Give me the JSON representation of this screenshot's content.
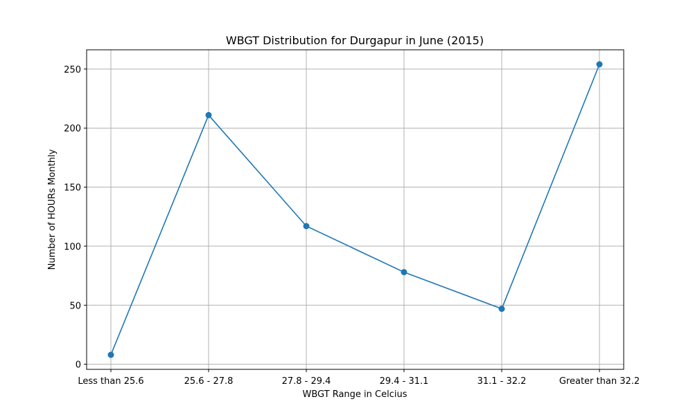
{
  "chart_data": {
    "type": "line",
    "title": "WBGT Distribution for Durgapur in June (2015)",
    "xlabel": "WBGT Range in Celcius",
    "ylabel": "Number of HOURs Monthly",
    "categories": [
      "Less than 25.6",
      "25.6 - 27.8",
      "27.8 - 29.4",
      "29.4 - 31.1",
      "31.1 - 32.2",
      "Greater than 32.2"
    ],
    "series": [
      {
        "values": [
          8,
          211,
          117,
          78,
          47,
          254
        ],
        "color": "#1f77b4"
      }
    ],
    "yticks": [
      0,
      50,
      100,
      150,
      200,
      250
    ],
    "ylim": [
      -4.3,
      266.3
    ],
    "grid": true,
    "marker": "circle"
  }
}
